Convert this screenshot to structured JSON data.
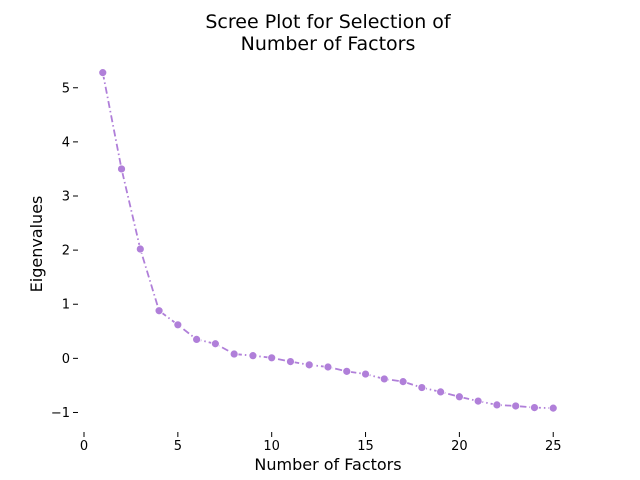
{
  "chart_data": {
    "type": "line",
    "title_lines": [
      "Scree Plot for Selection of",
      "Number of Factors"
    ],
    "xlabel": "Number of Factors",
    "ylabel": "Eigenvalues",
    "xlim": [
      0,
      26
    ],
    "ylim": [
      -1.25,
      5.55
    ],
    "x_ticks": [
      0,
      5,
      10,
      15,
      20,
      25
    ],
    "y_ticks": [
      -1,
      0,
      1,
      2,
      3,
      4,
      5
    ],
    "y_tick_labels": [
      "−1",
      "0",
      "1",
      "2",
      "3",
      "4",
      "5"
    ],
    "grid": false,
    "series": [
      {
        "line_style": "dashdot",
        "color": "#b07fd9",
        "x": [
          1,
          2,
          3,
          4,
          5,
          6,
          7,
          8,
          9,
          10,
          11,
          12,
          13,
          14,
          15,
          16,
          17,
          18,
          19,
          20,
          21,
          22,
          23,
          24,
          25
        ],
        "values": [
          5.28,
          3.5,
          2.02,
          0.88,
          0.62,
          0.35,
          0.27,
          0.08,
          0.05,
          0.01,
          -0.06,
          -0.12,
          -0.16,
          -0.24,
          -0.29,
          -0.38,
          -0.43,
          -0.54,
          -0.62,
          -0.71,
          -0.79,
          -0.86,
          -0.88,
          -0.91,
          -0.92
        ]
      }
    ]
  }
}
